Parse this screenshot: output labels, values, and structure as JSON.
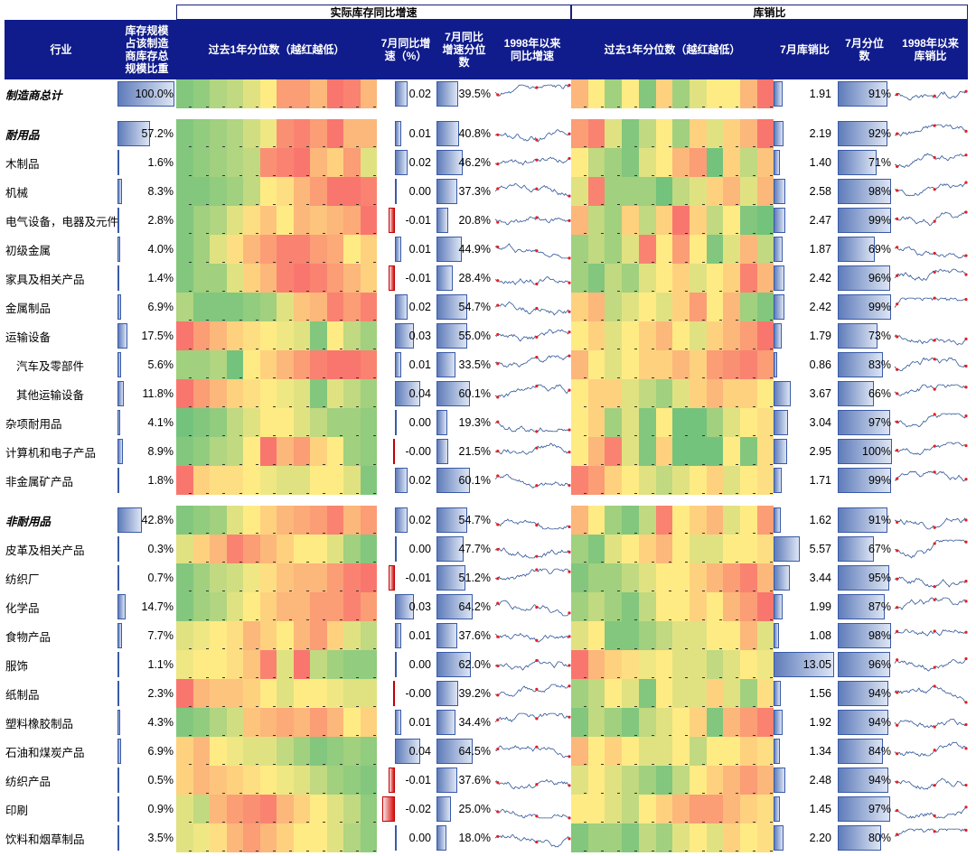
{
  "headers": {
    "group_inventory": "实际库存同比增速",
    "group_ratio": "库销比",
    "industry": "行业",
    "weight": "库存规模\n占该制造\n商库存总\n规模比重",
    "inv_heat": "过去1年分位数（越红越低）",
    "inv_yoy": "7月同比增\n速（%）",
    "inv_pct": "7月同比\n增速分位\n数",
    "inv_hist": "1998年以来\n同比增速",
    "ratio_heat": "过去1年分位数（越红越低）",
    "ratio_val": "7月库销比",
    "ratio_pct": "7月分位\n数",
    "ratio_hist": "1998年以来\n库销比"
  },
  "colors": {
    "header_bg": "#101c8c",
    "heat_low": "#f8696b",
    "heat_mid": "#ffeb84",
    "heat_high": "#63be7b",
    "bar_blue": "#5f7cba",
    "bar_red": "#d80f0f",
    "sparkline": "#2f5597",
    "sparkline_marker": "#e02020"
  },
  "rows": [
    {
      "name": "制造商总计",
      "style": "bold-italic",
      "weight": "100.0%",
      "w": 100.0,
      "yoy": "0.02",
      "yoy_v": 0.02,
      "yoy_pct": "39.5%",
      "yp": 39.5,
      "ratio": "1.91",
      "r": 1.91,
      "ratio_pct": "91%",
      "rp": 91,
      "inv_heat": [
        0.9,
        0.85,
        0.75,
        0.7,
        0.6,
        0.5,
        0.2,
        0.2,
        0.3,
        0.05,
        0.1,
        0.3
      ],
      "ratio_heat": [
        0.3,
        0.5,
        0.8,
        0.5,
        0.9,
        0.4,
        0.8,
        0.6,
        0.5,
        0.5,
        0.3,
        0.05
      ]
    },
    {
      "name": "耐用品",
      "style": "bold-italic",
      "weight": "57.2%",
      "w": 57.2,
      "yoy": "0.01",
      "yoy_v": 0.01,
      "yoy_pct": "40.8%",
      "yp": 40.8,
      "ratio": "2.19",
      "r": 2.19,
      "ratio_pct": "92%",
      "rp": 92,
      "inv_heat": [
        0.9,
        0.85,
        0.8,
        0.75,
        0.65,
        0.55,
        0.15,
        0.1,
        0.2,
        0.05,
        0.3,
        0.3
      ],
      "ratio_heat": [
        0.2,
        0.1,
        0.6,
        0.9,
        0.7,
        0.5,
        0.8,
        0.4,
        0.6,
        0.4,
        0.3,
        0.05
      ]
    },
    {
      "name": "木制品",
      "style": "normal",
      "weight": "1.6%",
      "w": 1.6,
      "yoy": "0.02",
      "yoy_v": 0.02,
      "yoy_pct": "46.2%",
      "yp": 46.2,
      "ratio": "1.40",
      "r": 1.4,
      "ratio_pct": "71%",
      "rp": 71,
      "inv_heat": [
        0.9,
        0.85,
        0.8,
        0.75,
        0.7,
        0.15,
        0.1,
        0.05,
        0.3,
        0.4,
        0.2,
        0.6
      ],
      "ratio_heat": [
        0.5,
        0.7,
        0.8,
        0.9,
        0.6,
        0.5,
        0.3,
        0.2,
        0.95,
        0.4,
        0.7,
        0.35
      ]
    },
    {
      "name": "机械",
      "style": "normal",
      "weight": "8.3%",
      "w": 8.3,
      "yoy": "0.00",
      "yoy_v": 0.0,
      "yoy_pct": "37.3%",
      "yp": 37.3,
      "ratio": "2.58",
      "r": 2.58,
      "ratio_pct": "98%",
      "rp": 98,
      "inv_heat": [
        0.9,
        0.9,
        0.85,
        0.8,
        0.7,
        0.5,
        0.45,
        0.3,
        0.2,
        0.05,
        0.05,
        0.1
      ],
      "ratio_heat": [
        0.6,
        0.1,
        0.8,
        0.8,
        0.8,
        0.95,
        0.7,
        0.6,
        0.4,
        0.3,
        0.6,
        0.3
      ]
    },
    {
      "name": "电气设备，电器及元件",
      "style": "normal",
      "weight": "2.8%",
      "w": 2.8,
      "yoy": "-0.01",
      "yoy_v": -0.01,
      "yoy_pct": "20.8%",
      "yp": 20.8,
      "ratio": "2.47",
      "r": 2.47,
      "ratio_pct": "99%",
      "rp": 99,
      "inv_heat": [
        0.9,
        0.8,
        0.75,
        0.6,
        0.45,
        0.35,
        0.5,
        0.3,
        0.35,
        0.3,
        0.25,
        0.05
      ],
      "ratio_heat": [
        0.3,
        0.7,
        0.8,
        0.4,
        0.7,
        0.4,
        0.05,
        0.4,
        0.7,
        0.5,
        0.9,
        0.95
      ]
    },
    {
      "name": "初级金属",
      "style": "normal",
      "weight": "4.0%",
      "w": 4.0,
      "yoy": "0.01",
      "yoy_v": 0.01,
      "yoy_pct": "44.9%",
      "yp": 44.9,
      "ratio": "1.87",
      "r": 1.87,
      "ratio_pct": "69%",
      "rp": 69,
      "inv_heat": [
        0.9,
        0.8,
        0.6,
        0.45,
        0.3,
        0.2,
        0.1,
        0.1,
        0.2,
        0.25,
        0.5,
        0.4
      ],
      "ratio_heat": [
        0.8,
        0.7,
        0.8,
        0.6,
        0.1,
        0.5,
        0.2,
        0.5,
        0.9,
        0.6,
        0.3,
        0.7
      ]
    },
    {
      "name": "家具及相关产品",
      "style": "normal",
      "weight": "1.4%",
      "w": 1.4,
      "yoy": "-0.01",
      "yoy_v": -0.01,
      "yoy_pct": "28.4%",
      "yp": 28.4,
      "ratio": "2.42",
      "r": 2.42,
      "ratio_pct": "96%",
      "rp": 96,
      "inv_heat": [
        0.9,
        0.8,
        0.8,
        0.6,
        0.4,
        0.3,
        0.1,
        0.05,
        0.1,
        0.2,
        0.3,
        0.4
      ],
      "ratio_heat": [
        0.8,
        0.9,
        0.7,
        0.8,
        0.6,
        0.5,
        0.4,
        0.6,
        0.5,
        0.4,
        0.1,
        0.3
      ]
    },
    {
      "name": "金属制品",
      "style": "normal",
      "weight": "6.9%",
      "w": 6.9,
      "yoy": "0.02",
      "yoy_v": 0.02,
      "yoy_pct": "54.7%",
      "yp": 54.7,
      "ratio": "2.42",
      "r": 2.42,
      "ratio_pct": "99%",
      "rp": 99,
      "inv_heat": [
        0.75,
        0.9,
        0.9,
        0.9,
        0.85,
        0.8,
        0.6,
        0.35,
        0.3,
        0.1,
        0.2,
        0.1
      ],
      "ratio_heat": [
        0.4,
        0.3,
        0.7,
        0.6,
        0.5,
        0.6,
        0.4,
        0.2,
        0.5,
        0.3,
        0.8,
        0.9
      ]
    },
    {
      "name": "运输设备",
      "style": "normal",
      "weight": "17.5%",
      "w": 17.5,
      "yoy": "0.03",
      "yoy_v": 0.03,
      "yoy_pct": "55.0%",
      "yp": 55.0,
      "ratio": "1.79",
      "r": 1.79,
      "ratio_pct": "73%",
      "rp": 73,
      "inv_heat": [
        0.05,
        0.2,
        0.3,
        0.4,
        0.45,
        0.5,
        0.55,
        0.6,
        0.9,
        0.5,
        0.7,
        0.8
      ],
      "ratio_heat": [
        0.5,
        0.4,
        0.6,
        0.5,
        0.4,
        0.3,
        0.5,
        0.6,
        0.4,
        0.3,
        0.2,
        0.05
      ]
    },
    {
      "name": "汽车及零部件",
      "style": "normal",
      "weight": "5.6%",
      "w": 5.6,
      "yoy": "0.01",
      "yoy_v": 0.01,
      "yoy_pct": "33.5%",
      "yp": 33.5,
      "ratio": "0.86",
      "r": 0.86,
      "ratio_pct": "83%",
      "rp": 83,
      "inv_heat": [
        0.8,
        0.8,
        0.75,
        0.95,
        0.5,
        0.4,
        0.3,
        0.2,
        0.1,
        0.05,
        0.05,
        0.1
      ],
      "ratio_heat": [
        0.3,
        0.5,
        0.6,
        0.5,
        0.4,
        0.4,
        0.3,
        0.4,
        0.2,
        0.15,
        0.1,
        0.2
      ]
    },
    {
      "name": "其他运输设备",
      "style": "normal",
      "weight": "11.8%",
      "w": 11.8,
      "yoy": "0.04",
      "yoy_v": 0.04,
      "yoy_pct": "60.1%",
      "yp": 60.1,
      "ratio": "3.67",
      "r": 3.67,
      "ratio_pct": "66%",
      "rp": 66,
      "inv_heat": [
        0.05,
        0.2,
        0.3,
        0.4,
        0.45,
        0.5,
        0.55,
        0.6,
        0.9,
        0.6,
        0.7,
        0.8
      ],
      "ratio_heat": [
        0.5,
        0.4,
        0.4,
        0.6,
        0.7,
        0.8,
        0.6,
        0.4,
        0.3,
        0.4,
        0.4,
        0.5
      ]
    },
    {
      "name": "杂项耐用品",
      "style": "normal",
      "weight": "4.1%",
      "w": 4.1,
      "yoy": "0.00",
      "yoy_v": 0.0,
      "yoy_pct": "19.3%",
      "yp": 19.3,
      "ratio": "3.04",
      "r": 3.04,
      "ratio_pct": "97%",
      "rp": 97,
      "inv_heat": [
        0.95,
        0.9,
        0.85,
        0.7,
        0.6,
        0.5,
        0.5,
        0.6,
        0.7,
        0.8,
        0.8,
        0.85
      ],
      "ratio_heat": [
        0.5,
        0.4,
        0.8,
        0.6,
        0.9,
        0.5,
        0.95,
        0.95,
        0.8,
        0.6,
        0.5,
        0.45
      ]
    },
    {
      "name": "计算机和电子产品",
      "style": "normal",
      "weight": "8.9%",
      "w": 8.9,
      "yoy": "-0.00",
      "yoy_v": -0.001,
      "yoy_pct": "21.5%",
      "yp": 21.5,
      "ratio": "2.95",
      "r": 2.95,
      "ratio_pct": "100%",
      "rp": 100,
      "inv_heat": [
        0.9,
        0.85,
        0.75,
        0.7,
        0.5,
        0.05,
        0.3,
        0.2,
        0.4,
        0.5,
        0.8,
        0.85
      ],
      "ratio_heat": [
        0.5,
        0.3,
        0.1,
        0.6,
        0.9,
        0.4,
        0.95,
        0.95,
        0.95,
        0.5,
        0.9,
        0.45
      ]
    },
    {
      "name": "非金属矿产品",
      "style": "normal",
      "weight": "1.8%",
      "w": 1.8,
      "yoy": "0.02",
      "yoy_v": 0.02,
      "yoy_pct": "60.1%",
      "yp": 60.1,
      "ratio": "1.71",
      "r": 1.71,
      "ratio_pct": "99%",
      "rp": 99,
      "inv_heat": [
        0.05,
        0.4,
        0.45,
        0.45,
        0.5,
        0.55,
        0.6,
        0.6,
        0.5,
        0.5,
        0.6,
        0.9
      ],
      "ratio_heat": [
        0.1,
        0.2,
        0.4,
        0.5,
        0.6,
        0.7,
        0.6,
        0.5,
        0.4,
        0.6,
        0.5,
        0.45
      ]
    },
    {
      "name": "非耐用品",
      "style": "bold-italic",
      "weight": "42.8%",
      "w": 42.8,
      "yoy": "0.02",
      "yoy_v": 0.02,
      "yoy_pct": "54.7%",
      "yp": 54.7,
      "ratio": "1.62",
      "r": 1.62,
      "ratio_pct": "91%",
      "rp": 91,
      "inv_heat": [
        0.9,
        0.85,
        0.8,
        0.6,
        0.5,
        0.4,
        0.3,
        0.25,
        0.2,
        0.1,
        0.3,
        0.2
      ],
      "ratio_heat": [
        0.3,
        0.5,
        0.8,
        0.9,
        0.7,
        0.1,
        0.5,
        0.4,
        0.3,
        0.6,
        0.5,
        0.2
      ]
    },
    {
      "name": "皮革及相关产品",
      "style": "normal",
      "weight": "0.3%",
      "w": 0.3,
      "yoy": "0.00",
      "yoy_v": 0.0,
      "yoy_pct": "47.7%",
      "yp": 47.7,
      "ratio": "5.57",
      "r": 5.57,
      "ratio_pct": "67%",
      "rp": 67,
      "inv_heat": [
        0.6,
        0.4,
        0.3,
        0.1,
        0.2,
        0.3,
        0.4,
        0.5,
        0.5,
        0.6,
        0.8,
        0.9
      ],
      "ratio_heat": [
        0.8,
        0.9,
        0.6,
        0.5,
        0.4,
        0.3,
        0.5,
        0.6,
        0.6,
        0.5,
        0.5,
        0.45
      ]
    },
    {
      "name": "纺织厂",
      "style": "normal",
      "weight": "0.7%",
      "w": 0.7,
      "yoy": "-0.01",
      "yoy_v": -0.01,
      "yoy_pct": "51.2%",
      "yp": 51.2,
      "ratio": "3.44",
      "r": 3.44,
      "ratio_pct": "95%",
      "rp": 95,
      "inv_heat": [
        0.9,
        0.8,
        0.7,
        0.65,
        0.55,
        0.45,
        0.35,
        0.3,
        0.3,
        0.2,
        0.1,
        0.05
      ],
      "ratio_heat": [
        0.9,
        0.8,
        0.8,
        0.7,
        0.6,
        0.5,
        0.5,
        0.4,
        0.3,
        0.2,
        0.1,
        0.3
      ]
    },
    {
      "name": "化学品",
      "style": "normal",
      "weight": "14.7%",
      "w": 14.7,
      "yoy": "0.03",
      "yoy_v": 0.03,
      "yoy_pct": "64.2%",
      "yp": 64.2,
      "ratio": "1.99",
      "r": 1.99,
      "ratio_pct": "87%",
      "rp": 87,
      "inv_heat": [
        0.9,
        0.8,
        0.75,
        0.6,
        0.5,
        0.4,
        0.3,
        0.3,
        0.2,
        0.2,
        0.1,
        0.2
      ],
      "ratio_heat": [
        0.8,
        0.7,
        0.8,
        0.9,
        0.7,
        0.5,
        0.5,
        0.4,
        0.5,
        0.3,
        0.2,
        0.05
      ]
    },
    {
      "name": "食物产品",
      "style": "normal",
      "weight": "7.7%",
      "w": 7.7,
      "yoy": "0.01",
      "yoy_v": 0.01,
      "yoy_pct": "37.6%",
      "yp": 37.6,
      "ratio": "1.08",
      "r": 1.08,
      "ratio_pct": "98%",
      "rp": 98,
      "inv_heat": [
        0.6,
        0.55,
        0.5,
        0.45,
        0.3,
        0.4,
        0.5,
        0.3,
        0.2,
        0.4,
        0.6,
        0.7
      ],
      "ratio_heat": [
        0.6,
        0.5,
        0.9,
        0.9,
        0.8,
        0.7,
        0.6,
        0.6,
        0.5,
        0.5,
        0.3,
        0.6
      ]
    },
    {
      "name": "服饰",
      "style": "normal",
      "weight": "1.1%",
      "w": 1.1,
      "yoy": "0.00",
      "yoy_v": 0.0,
      "yoy_pct": "62.0%",
      "yp": 62.0,
      "ratio": "13.05",
      "r": 13.05,
      "ratio_pct": "96%",
      "rp": 96,
      "inv_heat": [
        0.55,
        0.5,
        0.5,
        0.45,
        0.35,
        0.1,
        0.6,
        0.05,
        0.7,
        0.8,
        0.85,
        0.85
      ],
      "ratio_heat": [
        0.05,
        0.3,
        0.4,
        0.45,
        0.55,
        0.5,
        0.6,
        0.6,
        0.7,
        0.6,
        0.5,
        0.55
      ]
    },
    {
      "name": "纸制品",
      "style": "normal",
      "weight": "2.3%",
      "w": 2.3,
      "yoy": "-0.00",
      "yoy_v": -0.001,
      "yoy_pct": "39.2%",
      "yp": 39.2,
      "ratio": "1.56",
      "r": 1.56,
      "ratio_pct": "94%",
      "rp": 94,
      "inv_heat": [
        0.05,
        0.3,
        0.35,
        0.35,
        0.4,
        0.5,
        0.6,
        0.5,
        0.5,
        0.55,
        0.6,
        0.6
      ],
      "ratio_heat": [
        0.8,
        0.7,
        0.5,
        0.6,
        0.9,
        0.5,
        0.6,
        0.6,
        0.4,
        0.6,
        0.8,
        0.45
      ]
    },
    {
      "name": "塑料橡胶制品",
      "style": "normal",
      "weight": "4.3%",
      "w": 4.3,
      "yoy": "0.01",
      "yoy_v": 0.01,
      "yoy_pct": "34.4%",
      "yp": 34.4,
      "ratio": "1.92",
      "r": 1.92,
      "ratio_pct": "94%",
      "rp": 94,
      "inv_heat": [
        0.9,
        0.85,
        0.75,
        0.65,
        0.35,
        0.3,
        0.25,
        0.3,
        0.2,
        0.3,
        0.5,
        0.4
      ],
      "ratio_heat": [
        0.9,
        0.7,
        0.8,
        0.9,
        0.7,
        0.6,
        0.5,
        0.4,
        0.9,
        0.3,
        0.2,
        0.1
      ]
    },
    {
      "name": "石油和煤炭产品",
      "style": "normal",
      "weight": "6.9%",
      "w": 6.9,
      "yoy": "0.04",
      "yoy_v": 0.04,
      "yoy_pct": "64.5%",
      "yp": 64.5,
      "ratio": "1.34",
      "r": 1.34,
      "ratio_pct": "84%",
      "rp": 84,
      "inv_heat": [
        0.4,
        0.3,
        0.5,
        0.55,
        0.6,
        0.6,
        0.7,
        0.8,
        0.9,
        0.85,
        0.8,
        0.85
      ],
      "ratio_heat": [
        0.3,
        0.5,
        0.4,
        0.5,
        0.6,
        0.6,
        0.5,
        0.7,
        0.5,
        0.5,
        0.4,
        0.45
      ]
    },
    {
      "name": "纺织产品",
      "style": "normal",
      "weight": "0.5%",
      "w": 0.5,
      "yoy": "-0.01",
      "yoy_v": -0.01,
      "yoy_pct": "37.6%",
      "yp": 37.6,
      "ratio": "2.48",
      "r": 2.48,
      "ratio_pct": "94%",
      "rp": 94,
      "inv_heat": [
        0.4,
        0.3,
        0.35,
        0.4,
        0.45,
        0.5,
        0.55,
        0.6,
        0.7,
        0.8,
        0.85,
        0.9
      ],
      "ratio_heat": [
        0.6,
        0.5,
        0.6,
        0.7,
        0.8,
        0.9,
        0.7,
        0.5,
        0.4,
        0.3,
        0.2,
        0.3
      ]
    },
    {
      "name": "印刷",
      "style": "normal",
      "weight": "0.9%",
      "w": 0.9,
      "yoy": "-0.02",
      "yoy_v": -0.02,
      "yoy_pct": "25.0%",
      "yp": 25.0,
      "ratio": "1.45",
      "r": 1.45,
      "ratio_pct": "97%",
      "rp": 97,
      "inv_heat": [
        0.6,
        0.7,
        0.3,
        0.2,
        0.15,
        0.1,
        0.3,
        0.4,
        0.5,
        0.6,
        0.7,
        0.85
      ],
      "ratio_heat": [
        0.5,
        0.5,
        0.6,
        0.7,
        0.5,
        0.4,
        0.3,
        0.2,
        0.2,
        0.3,
        0.4,
        0.45
      ]
    },
    {
      "name": "饮料和烟草制品",
      "style": "normal",
      "weight": "3.5%",
      "w": 3.5,
      "yoy": "0.00",
      "yoy_v": 0.0,
      "yoy_pct": "18.0%",
      "yp": 18.0,
      "ratio": "2.20",
      "r": 2.2,
      "ratio_pct": "80%",
      "rp": 80,
      "inv_heat": [
        0.6,
        0.55,
        0.45,
        0.3,
        0.2,
        0.3,
        0.4,
        0.5,
        0.5,
        0.6,
        0.75,
        0.85
      ],
      "ratio_heat": [
        0.9,
        0.8,
        0.8,
        0.9,
        0.7,
        0.8,
        0.6,
        0.5,
        0.6,
        0.4,
        0.5,
        0.45
      ]
    }
  ]
}
